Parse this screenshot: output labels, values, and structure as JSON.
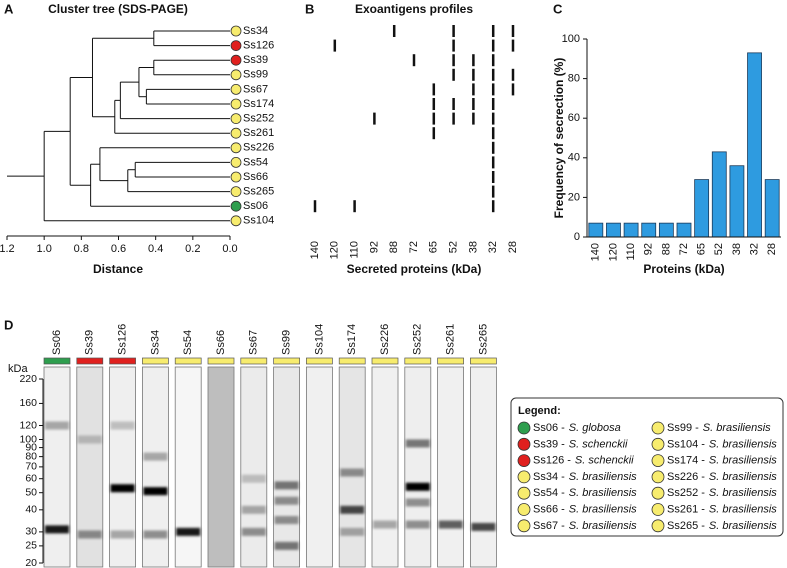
{
  "chart_data": [
    {
      "type": "dendrogram",
      "panel": "A",
      "title": "Cluster tree (SDS-PAGE)",
      "x_label": "Distance",
      "leaves": [
        "Ss34",
        "Ss126",
        "Ss39",
        "Ss99",
        "Ss67",
        "Ss174",
        "Ss252",
        "Ss261",
        "Ss226",
        "Ss54",
        "Ss66",
        "Ss265",
        "Ss06",
        "Ss104"
      ],
      "leaf_colors": [
        "#f7ec6e",
        "#e0201e",
        "#e0201e",
        "#f7ec6e",
        "#f7ec6e",
        "#f7ec6e",
        "#f7ec6e",
        "#f7ec6e",
        "#f7ec6e",
        "#f7ec6e",
        "#f7ec6e",
        "#f7ec6e",
        "#2e9e4e",
        "#f7ec6e"
      ],
      "merges": [
        {
          "children": [
            0,
            1
          ],
          "height": 0.41
        },
        {
          "children": [
            2,
            3
          ],
          "height": 0.41
        },
        {
          "children": [
            4,
            5
          ],
          "height": 0.45
        },
        {
          "children": [
            15,
            16
          ],
          "height": 0.49
        },
        {
          "children": [
            17,
            6
          ],
          "height": 0.59
        },
        {
          "children": [
            18,
            7
          ],
          "height": 0.62
        },
        {
          "children": [
            14,
            19
          ],
          "height": 0.74
        },
        {
          "children": [
            9,
            10
          ],
          "height": 0.51
        },
        {
          "children": [
            21,
            11
          ],
          "height": 0.55
        },
        {
          "children": [
            8,
            22
          ],
          "height": 0.7
        },
        {
          "children": [
            23,
            12
          ],
          "height": 0.75
        },
        {
          "children": [
            20,
            24
          ],
          "height": 0.86
        },
        {
          "children": [
            25,
            13
          ],
          "height": 1.0
        }
      ],
      "xlim": [
        1.2,
        0
      ],
      "xticks": [
        1.2,
        {
          "value": 1,
          "label": "1.0"
        },
        0.8,
        0.6,
        0.4,
        0.2,
        {
          "value": 0,
          "label": "0.0"
        }
      ]
    },
    {
      "type": "presence",
      "panel": "B",
      "title": "Exoantigens profiles",
      "x_label": "Secreted proteins (kDa)",
      "categories": [
        "140",
        "120",
        "110",
        "92",
        "88",
        "72",
        "65",
        "52",
        "38",
        "32",
        "28"
      ],
      "matrix": [
        [
          0,
          0,
          0,
          0,
          1,
          0,
          0,
          1,
          0,
          1,
          1
        ],
        [
          0,
          1,
          0,
          0,
          0,
          0,
          0,
          1,
          0,
          1,
          1
        ],
        [
          0,
          0,
          0,
          0,
          0,
          1,
          0,
          1,
          1,
          1,
          0
        ],
        [
          0,
          0,
          0,
          0,
          0,
          0,
          0,
          1,
          1,
          1,
          1
        ],
        [
          0,
          0,
          0,
          0,
          0,
          0,
          1,
          0,
          1,
          1,
          1
        ],
        [
          0,
          0,
          0,
          0,
          0,
          0,
          1,
          1,
          1,
          1,
          0
        ],
        [
          0,
          0,
          0,
          1,
          0,
          0,
          1,
          1,
          1,
          1,
          0
        ],
        [
          0,
          0,
          0,
          0,
          0,
          0,
          1,
          0,
          0,
          1,
          0
        ],
        [
          0,
          0,
          0,
          0,
          0,
          0,
          0,
          0,
          0,
          1,
          0
        ],
        [
          0,
          0,
          0,
          0,
          0,
          0,
          0,
          0,
          0,
          1,
          0
        ],
        [
          0,
          0,
          0,
          0,
          0,
          0,
          0,
          0,
          0,
          1,
          0
        ],
        [
          0,
          0,
          0,
          0,
          0,
          0,
          0,
          0,
          0,
          1,
          0
        ],
        [
          1,
          0,
          1,
          0,
          0,
          0,
          0,
          0,
          0,
          1,
          0
        ],
        [
          0,
          0,
          0,
          0,
          0,
          0,
          0,
          0,
          0,
          0,
          0
        ]
      ]
    },
    {
      "type": "bar",
      "panel": "C",
      "x_label": "Proteins (kDa)",
      "y_label": "Frequency of secrection (%)",
      "categories": [
        "140",
        "120",
        "110",
        "92",
        "88",
        "72",
        "65",
        "52",
        "38",
        "32",
        "28"
      ],
      "values": [
        7,
        7,
        7,
        7,
        7,
        7,
        29,
        43,
        36,
        93,
        29
      ],
      "color": "#2e9be0",
      "ylim": [
        0,
        100
      ],
      "yticks": [
        0,
        20,
        40,
        60,
        80,
        100
      ]
    },
    {
      "type": "gel",
      "panel": "D",
      "y_label": "kDa",
      "log_scale": true,
      "ylim": [
        20,
        220
      ],
      "yticks": [
        220,
        160,
        120,
        100,
        90,
        80,
        70,
        60,
        50,
        40,
        30,
        25,
        20
      ],
      "lanes": [
        {
          "name": "Ss06",
          "color": "#2e9e4e",
          "shade": 0.05,
          "bands": [
            {
              "kda": 120,
              "intensity": 0.3
            },
            {
              "kda": 31,
              "intensity": 0.9
            }
          ]
        },
        {
          "name": "Ss39",
          "color": "#e0201e",
          "shade": 0.15,
          "bands": [
            {
              "kda": 100,
              "intensity": 0.2
            },
            {
              "kda": 29,
              "intensity": 0.4
            }
          ]
        },
        {
          "name": "Ss126",
          "color": "#e0201e",
          "shade": 0.05,
          "bands": [
            {
              "kda": 120,
              "intensity": 0.2
            },
            {
              "kda": 53,
              "intensity": 1.0
            },
            {
              "kda": 29,
              "intensity": 0.3
            }
          ]
        },
        {
          "name": "Ss34",
          "color": "#f7ec6e",
          "shade": 0.05,
          "bands": [
            {
              "kda": 80,
              "intensity": 0.3
            },
            {
              "kda": 51,
              "intensity": 1.0
            },
            {
              "kda": 29,
              "intensity": 0.4
            }
          ]
        },
        {
          "name": "Ss54",
          "color": "#f7ec6e",
          "shade": 0.0,
          "bands": [
            {
              "kda": 30,
              "intensity": 0.9
            }
          ]
        },
        {
          "name": "Ss66",
          "color": "#f7ec6e",
          "shade": 0.4,
          "bands": []
        },
        {
          "name": "Ss67",
          "color": "#f7ec6e",
          "shade": 0.08,
          "bands": [
            {
              "kda": 60,
              "intensity": 0.2
            },
            {
              "kda": 40,
              "intensity": 0.3
            },
            {
              "kda": 30,
              "intensity": 0.4
            }
          ]
        },
        {
          "name": "Ss99",
          "color": "#f7ec6e",
          "shade": 0.1,
          "bands": [
            {
              "kda": 55,
              "intensity": 0.5
            },
            {
              "kda": 45,
              "intensity": 0.4
            },
            {
              "kda": 35,
              "intensity": 0.4
            },
            {
              "kda": 25,
              "intensity": 0.5
            }
          ]
        },
        {
          "name": "Ss104",
          "color": "#f7ec6e",
          "shade": 0.04,
          "bands": []
        },
        {
          "name": "Ss174",
          "color": "#f7ec6e",
          "shade": 0.12,
          "bands": [
            {
              "kda": 65,
              "intensity": 0.4
            },
            {
              "kda": 40,
              "intensity": 0.7
            },
            {
              "kda": 30,
              "intensity": 0.3
            }
          ]
        },
        {
          "name": "Ss226",
          "color": "#f7ec6e",
          "shade": 0.04,
          "bands": [
            {
              "kda": 33,
              "intensity": 0.3
            }
          ]
        },
        {
          "name": "Ss252",
          "color": "#f7ec6e",
          "shade": 0.06,
          "bands": [
            {
              "kda": 95,
              "intensity": 0.5
            },
            {
              "kda": 54,
              "intensity": 1.0
            },
            {
              "kda": 44,
              "intensity": 0.4
            },
            {
              "kda": 33,
              "intensity": 0.4
            }
          ]
        },
        {
          "name": "Ss261",
          "color": "#f7ec6e",
          "shade": 0.04,
          "bands": [
            {
              "kda": 33,
              "intensity": 0.6
            }
          ]
        },
        {
          "name": "Ss265",
          "color": "#f7ec6e",
          "shade": 0.04,
          "bands": [
            {
              "kda": 32,
              "intensity": 0.7
            }
          ]
        }
      ],
      "legend": {
        "title": "Legend:",
        "entries": [
          {
            "name": "Ss06 -",
            "species": "S. globosa",
            "color": "#2e9e4e"
          },
          {
            "name": "Ss39 -",
            "species": "S. schenckii",
            "color": "#e0201e"
          },
          {
            "name": "Ss126 -",
            "species": "S. schenckii",
            "color": "#e0201e"
          },
          {
            "name": "Ss34 -",
            "species": "S. brasiliensis",
            "color": "#f7ec6e"
          },
          {
            "name": "Ss54 -",
            "species": "S. brasiliensis",
            "color": "#f7ec6e"
          },
          {
            "name": "Ss66 -",
            "species": "S. brasiliensis",
            "color": "#f7ec6e"
          },
          {
            "name": "Ss67 -",
            "species": "S. brasiliensis",
            "color": "#f7ec6e"
          },
          {
            "name": "Ss99 -",
            "species": "S. brasiliensis",
            "color": "#f7ec6e"
          },
          {
            "name": "Ss104 -",
            "species": "S. brasiliensis",
            "color": "#f7ec6e"
          },
          {
            "name": "Ss174 -",
            "species": "S. brasiliensis",
            "color": "#f7ec6e"
          },
          {
            "name": "Ss226 -",
            "species": "S. brasiliensis",
            "color": "#f7ec6e"
          },
          {
            "name": "Ss252 -",
            "species": "S. brasiliensis",
            "color": "#f7ec6e"
          },
          {
            "name": "Ss261 -",
            "species": "S. brasiliensis",
            "color": "#f7ec6e"
          },
          {
            "name": "Ss265 -",
            "species": "S. brasiliensis",
            "color": "#f7ec6e"
          }
        ]
      }
    }
  ]
}
